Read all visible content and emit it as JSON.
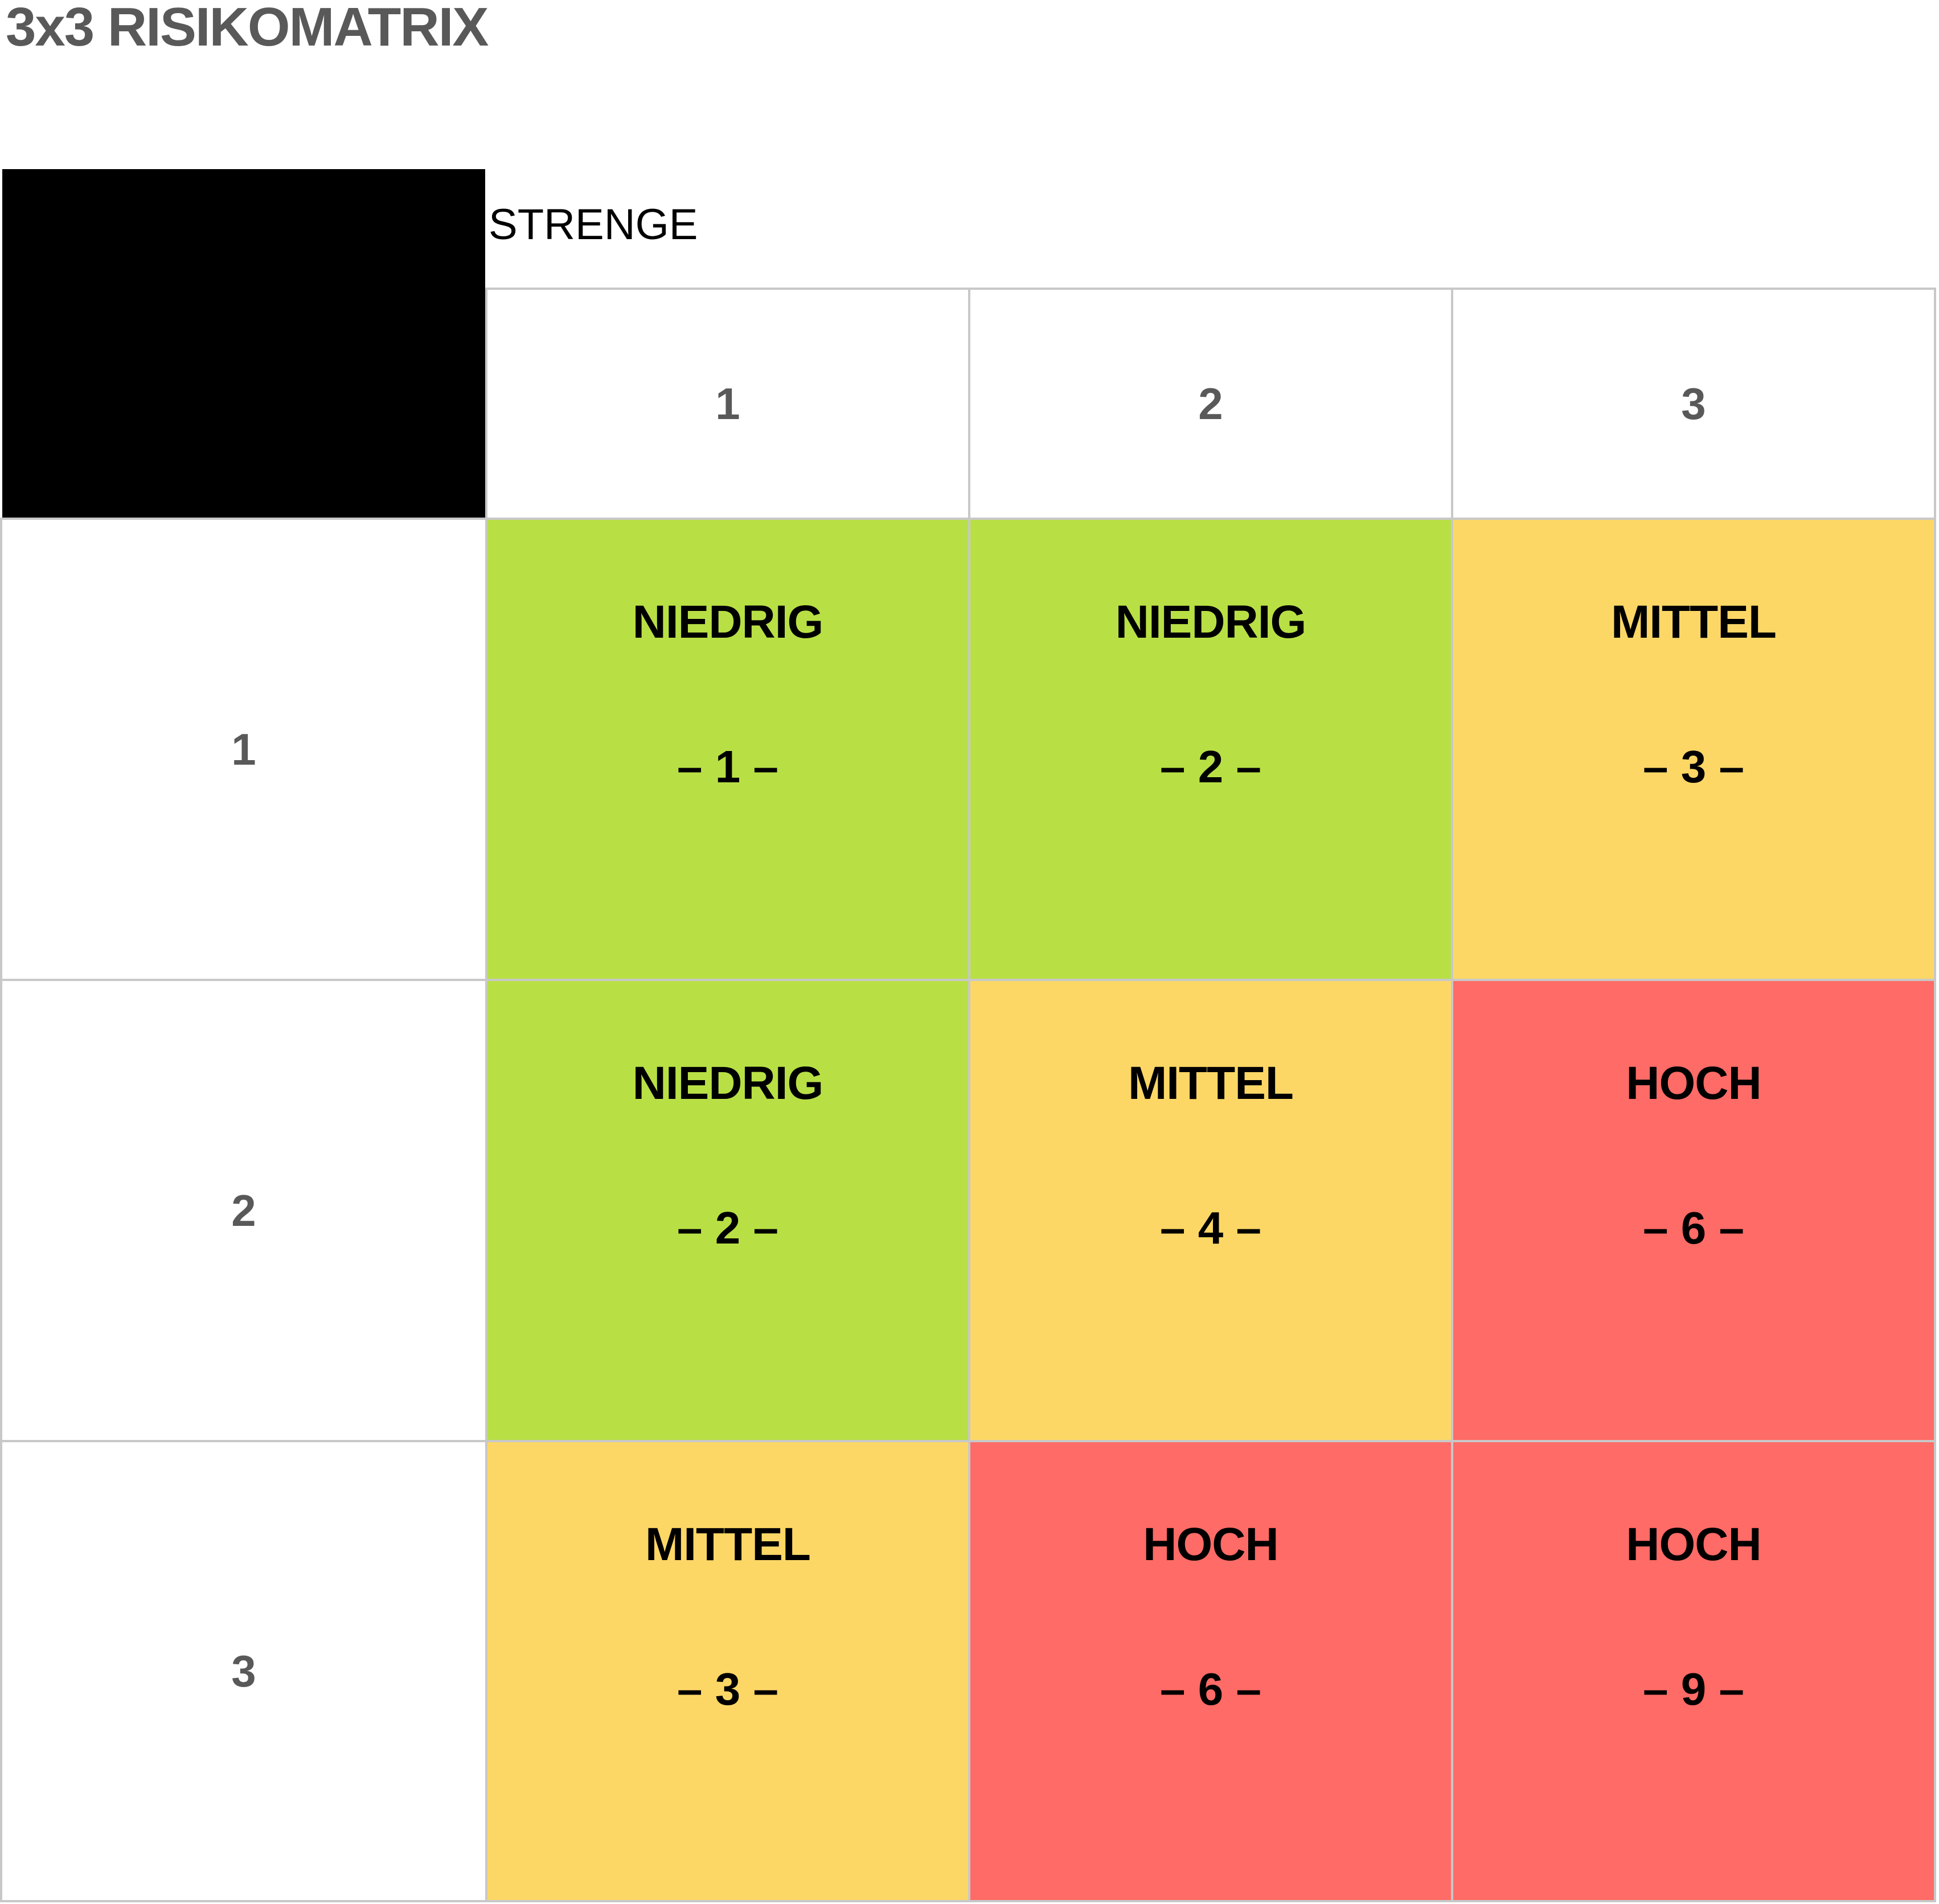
{
  "title": "3x3 RISIKOMATRIX",
  "axis_label": "STRENGE",
  "column_headers": [
    "1",
    "2",
    "3"
  ],
  "row_headers": [
    "1",
    "2",
    "3"
  ],
  "colors": {
    "niedrig": "#b8e045",
    "mittel": "#fdd766",
    "hoch": "#ff6b66",
    "header_text": "#595959",
    "border": "#c8c8c8",
    "corner": "#000000"
  },
  "cells": [
    [
      {
        "level": "NIEDRIG",
        "score": "– 1 –",
        "color": "#b8e045"
      },
      {
        "level": "NIEDRIG",
        "score": "– 2 –",
        "color": "#b8e045"
      },
      {
        "level": "MITTEL",
        "score": "– 3 –",
        "color": "#fdd766"
      }
    ],
    [
      {
        "level": "NIEDRIG",
        "score": "– 2 –",
        "color": "#b8e045"
      },
      {
        "level": "MITTEL",
        "score": "– 4 –",
        "color": "#fdd766"
      },
      {
        "level": "HOCH",
        "score": "– 6 –",
        "color": "#ff6b66"
      }
    ],
    [
      {
        "level": "MITTEL",
        "score": "– 3 –",
        "color": "#fdd766"
      },
      {
        "level": "HOCH",
        "score": "– 6 –",
        "color": "#ff6b66"
      },
      {
        "level": "HOCH",
        "score": "– 9 –",
        "color": "#ff6b66"
      }
    ]
  ]
}
